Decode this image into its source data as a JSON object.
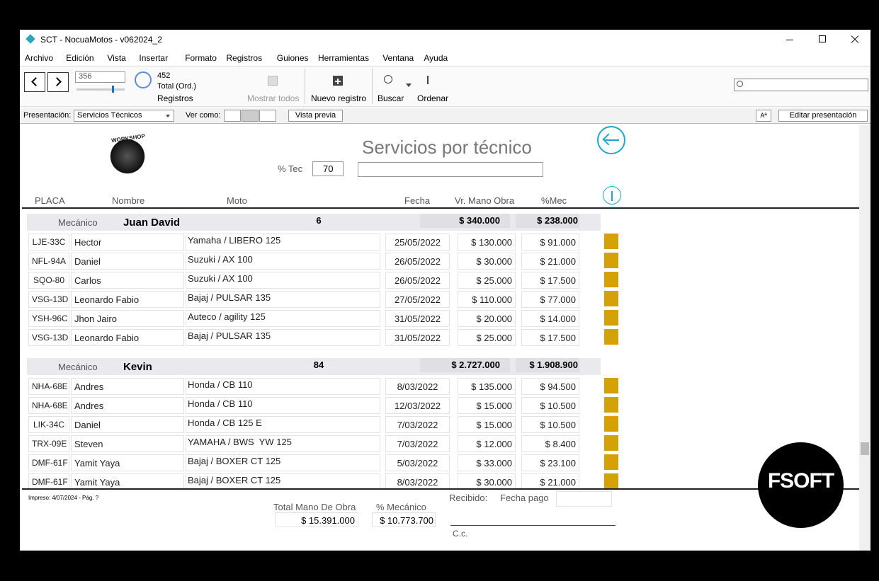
{
  "window": {
    "title": "SCT - NocuaMotos - v062024_2"
  },
  "menu": [
    "Archivo",
    "Edición",
    "Vista",
    "Insertar",
    "Formato",
    "Registros",
    "Guiones",
    "Herramientas",
    "Ventana",
    "Ayuda"
  ],
  "toolbar": {
    "record": "356",
    "found": "452",
    "total_label": "Total (Ord.)",
    "records_label": "Registros",
    "show_all": "Mostrar todos",
    "new_record": "Nuevo registro",
    "find": "Buscar",
    "sort": "Ordenar"
  },
  "layout_bar": {
    "layout_label": "Presentación:",
    "layout": "Servicios Técnicos",
    "view_as": "Ver como:",
    "preview": "Vista previa",
    "text_button": "Aª",
    "edit_layout": "Editar presentación"
  },
  "report": {
    "logo_text": "WORKSHOP",
    "title": "Servicios por técnico",
    "tec_label": "% Tec",
    "tec_value": "70",
    "columns": [
      "PLACA",
      "Nombre",
      "Moto",
      "Fecha",
      "Vr. Mano Obra",
      "%Mec"
    ],
    "groups": [
      {
        "label": "Mecánico",
        "name": "Juan David",
        "count": "6",
        "total": "$ 340.000",
        "mec": "$ 238.000",
        "rows": [
          [
            "LJE-33C",
            "Hector",
            "Yamaha / LIBERO 125",
            "25/05/2022",
            "$ 130.000",
            "$ 91.000"
          ],
          [
            "NFL-94A",
            "Daniel",
            "Suzuki / AX 100",
            "26/05/2022",
            "$ 30.000",
            "$ 21.000"
          ],
          [
            "SQO-80",
            "Carlos",
            "Suzuki / AX 100",
            "26/05/2022",
            "$ 25.000",
            "$ 17.500"
          ],
          [
            "VSG-13D",
            "Leonardo Fabio",
            "Bajaj / PULSAR 135",
            "27/05/2022",
            "$ 110.000",
            "$ 77.000"
          ],
          [
            "YSH-96C",
            "Jhon Jairo",
            "Auteco / agility 125",
            "31/05/2022",
            "$ 20.000",
            "$ 14.000"
          ],
          [
            "VSG-13D",
            "Leonardo Fabio",
            "Bajaj / PULSAR 135",
            "31/05/2022",
            "$ 25.000",
            "$ 17.500"
          ]
        ]
      },
      {
        "label": "Mecánico",
        "name": "Kevin",
        "count": "84",
        "total": "$ 2.727.000",
        "mec": "$ 1.908.900",
        "rows": [
          [
            "NHA-68E",
            "Andres",
            "Honda / CB 110",
            "8/03/2022",
            "$ 135.000",
            "$ 94.500"
          ],
          [
            "NHA-68E",
            "Andres",
            "Honda / CB 110",
            "12/03/2022",
            "$ 15.000",
            "$ 10.500"
          ],
          [
            "LIK-34C",
            "Daniel",
            "Honda / CB 125 E",
            "7/03/2022",
            "$ 15.000",
            "$ 10.500"
          ],
          [
            "TRX-09E",
            "Steven",
            "YAMAHA / BWS  YW 125",
            "7/03/2022",
            "$ 12.000",
            "$ 8.400"
          ],
          [
            "DMF-61F",
            "Yamit Yaya",
            "Bajaj / BOXER CT 125",
            "5/03/2022",
            "$ 33.000",
            "$ 23.100"
          ],
          [
            "DMF-61F",
            "Yamit Yaya",
            "Bajaj / BOXER CT 125",
            "8/03/2022",
            "$ 30.000",
            "$ 21.000"
          ]
        ]
      }
    ]
  },
  "footer": {
    "printed": "Impreso: 4/07/2024 - Pág. ?",
    "total_label": "Total Mano De Obra",
    "total": "$ 15.391.000",
    "mec_label": "% Mecánico",
    "mec": "$ 10.773.700",
    "received": "Recibido:",
    "pay_date": "Fecha pago",
    "cc": "C.c."
  },
  "watermark": "FSOFT"
}
